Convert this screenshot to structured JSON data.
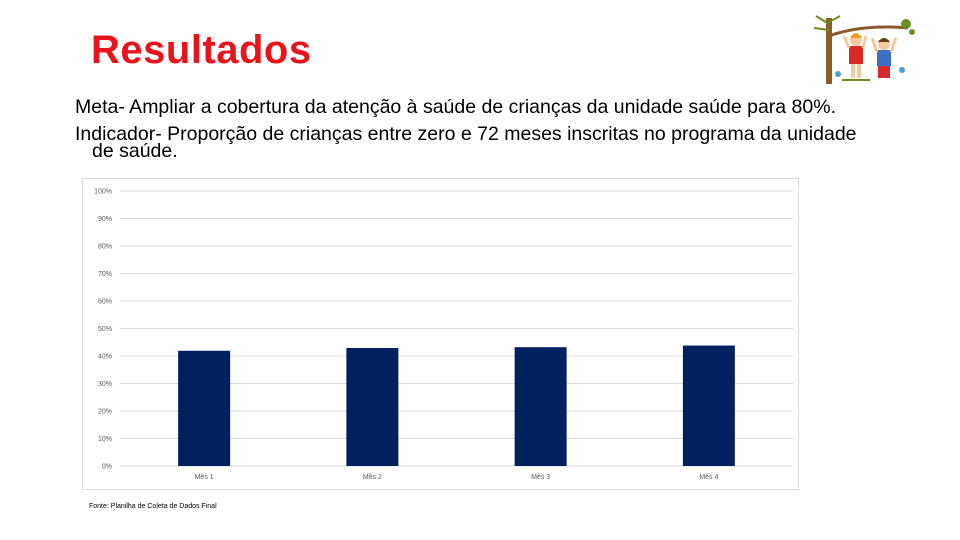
{
  "slide": {
    "title": "Resultados",
    "meta_line": "Meta-  Ampliar a cobertura da atenção à saúde de crianças da unidade saúde para 80%.",
    "indicator_line1": "Indicador- Proporção de crianças entre zero e 72 meses inscritas no programa da unidade",
    "indicator_line2": "de saúde.",
    "source": "Fonte: Planilha de Coleta de Dados Final",
    "illustration_icon": "children-on-tree-illustration"
  },
  "chart_data": {
    "type": "bar",
    "categories": [
      "Mês 1",
      "Mês 2",
      "Mês 3",
      "Mês 4"
    ],
    "values": [
      41.9,
      42.9,
      43.2,
      43.8
    ],
    "ylim": [
      0,
      100
    ],
    "yticks": [
      "0%",
      "10%",
      "20%",
      "30%",
      "40%",
      "50%",
      "60%",
      "70%",
      "80%",
      "90%",
      "100%"
    ],
    "title": "",
    "xlabel": "",
    "ylabel": "",
    "grid": true,
    "legend": "none",
    "bar_color": "#002060",
    "grid_color": "#d9d9d9"
  }
}
